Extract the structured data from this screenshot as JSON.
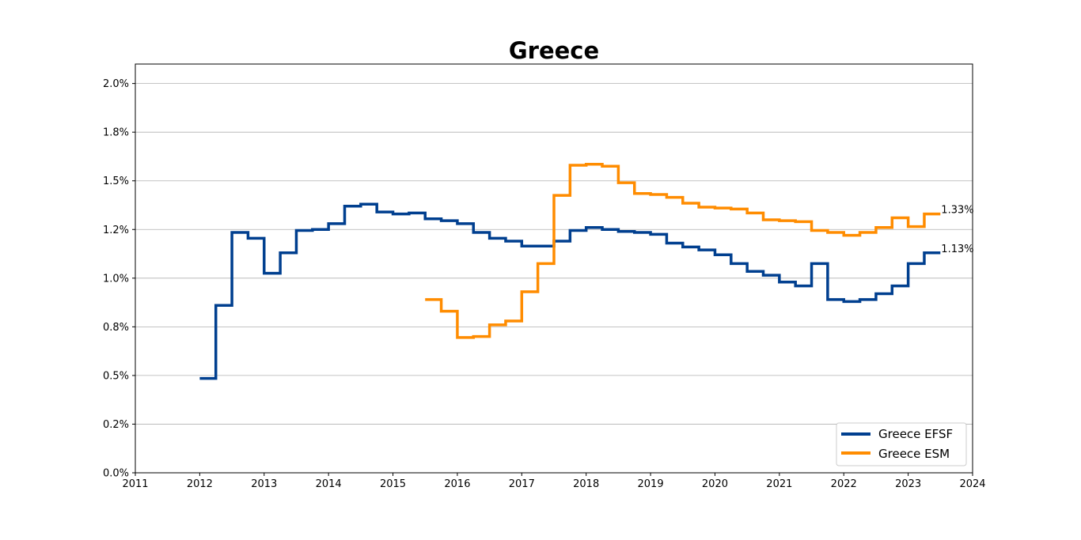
{
  "chart_data": {
    "type": "line",
    "title": "Greece",
    "xlabel": "",
    "ylabel": "",
    "xlim": [
      2011,
      2024
    ],
    "ylim": [
      0,
      2.1
    ],
    "x_ticks": [
      2011,
      2012,
      2013,
      2014,
      2015,
      2016,
      2017,
      2018,
      2019,
      2020,
      2021,
      2022,
      2023,
      2024
    ],
    "x_tick_labels": [
      "2011",
      "2012",
      "2013",
      "2014",
      "2015",
      "2016",
      "2017",
      "2018",
      "2019",
      "2020",
      "2021",
      "2022",
      "2023",
      "2024"
    ],
    "y_ticks": [
      0,
      0.25,
      0.5,
      0.75,
      1.0,
      1.25,
      1.5,
      1.75,
      2.0
    ],
    "y_tick_labels": [
      "0.0%",
      "0.2%",
      "0.5%",
      "0.8%",
      "1.0%",
      "1.2%",
      "1.5%",
      "1.8%",
      "2.0%"
    ],
    "grid": "horizontal",
    "legend_position": "bottom-right",
    "step": "post",
    "series": [
      {
        "name": "Greece EFSF",
        "color": "#003f8f",
        "end_label": "1.13%",
        "x": [
          2012.0,
          2012.25,
          2012.5,
          2012.75,
          2013.0,
          2013.25,
          2013.5,
          2013.75,
          2014.0,
          2014.25,
          2014.5,
          2014.75,
          2015.0,
          2015.25,
          2015.5,
          2015.75,
          2016.0,
          2016.25,
          2016.5,
          2016.75,
          2017.0,
          2017.25,
          2017.5,
          2017.75,
          2018.0,
          2018.25,
          2018.5,
          2018.75,
          2019.0,
          2019.25,
          2019.5,
          2019.75,
          2020.0,
          2020.25,
          2020.5,
          2020.75,
          2021.0,
          2021.25,
          2021.5,
          2021.75,
          2022.0,
          2022.25,
          2022.5,
          2022.75,
          2023.0,
          2023.25,
          2023.5
        ],
        "values": [
          0.485,
          0.86,
          1.235,
          1.205,
          1.025,
          1.13,
          1.245,
          1.25,
          1.28,
          1.37,
          1.38,
          1.34,
          1.33,
          1.335,
          1.305,
          1.295,
          1.28,
          1.235,
          1.205,
          1.19,
          1.165,
          1.165,
          1.19,
          1.245,
          1.26,
          1.25,
          1.24,
          1.235,
          1.225,
          1.18,
          1.16,
          1.145,
          1.12,
          1.075,
          1.035,
          1.015,
          0.98,
          0.96,
          1.075,
          0.89,
          0.88,
          0.89,
          0.92,
          0.96,
          1.075,
          1.13,
          1.13
        ]
      },
      {
        "name": "Greece ESM",
        "color": "#ff8c00",
        "end_label": "1.33%",
        "x": [
          2015.5,
          2015.75,
          2016.0,
          2016.25,
          2016.5,
          2016.75,
          2017.0,
          2017.25,
          2017.5,
          2017.75,
          2018.0,
          2018.25,
          2018.5,
          2018.75,
          2019.0,
          2019.25,
          2019.5,
          2019.75,
          2020.0,
          2020.25,
          2020.5,
          2020.75,
          2021.0,
          2021.25,
          2021.5,
          2021.75,
          2022.0,
          2022.25,
          2022.5,
          2022.75,
          2023.0,
          2023.25,
          2023.5
        ],
        "values": [
          0.89,
          0.83,
          0.695,
          0.7,
          0.76,
          0.78,
          0.93,
          1.075,
          1.425,
          1.58,
          1.585,
          1.575,
          1.49,
          1.435,
          1.43,
          1.415,
          1.385,
          1.365,
          1.36,
          1.355,
          1.335,
          1.3,
          1.295,
          1.29,
          1.245,
          1.235,
          1.22,
          1.235,
          1.26,
          1.31,
          1.265,
          1.33,
          1.33
        ]
      }
    ]
  }
}
